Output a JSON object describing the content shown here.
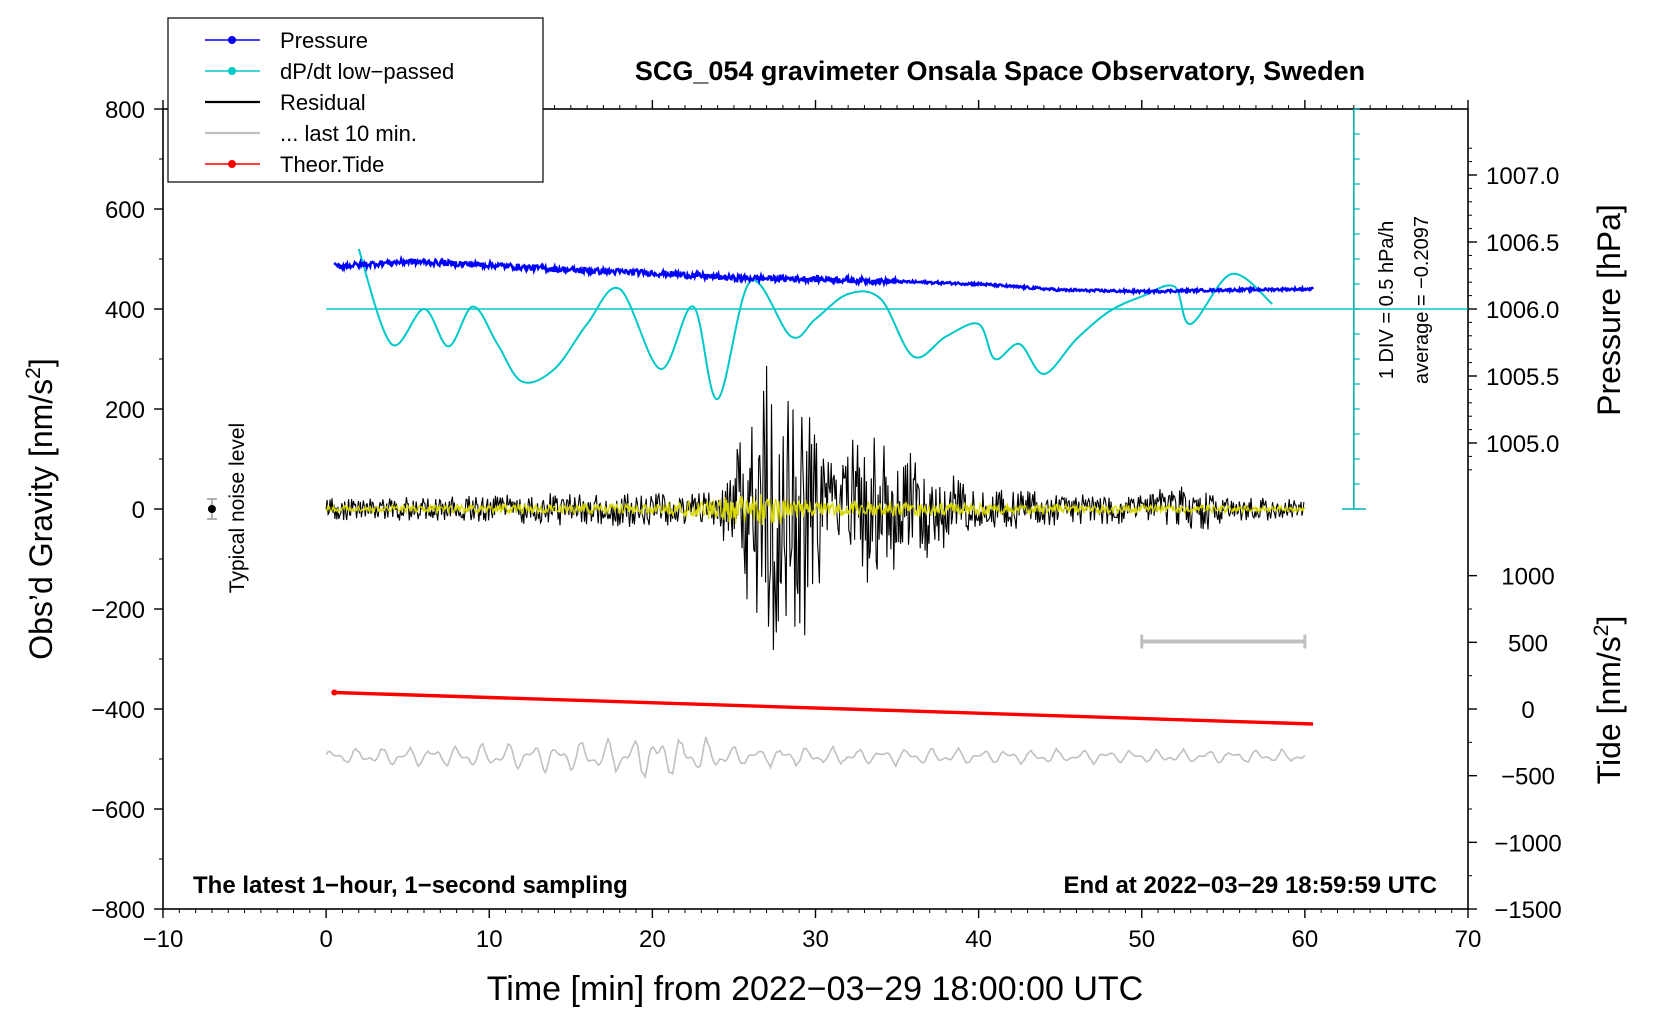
{
  "chart_data": {
    "type": "line",
    "title": "SCG_054 gravimeter Onsala Space Observatory, Sweden",
    "xlabel": "Time [min] from 2022−03−29 18:00:00 UTC",
    "ylabel_main": "Obs’d Gravity [nm/s",
    "ylabel_main_sup": "2",
    "ylabel_main_tail": "]",
    "ylabel_pressure": "Pressure [hPa]",
    "ylabel_tide": "Tide [nm/s",
    "ylabel_tide_sup": "2",
    "ylabel_tide_tail": "]",
    "xlim": [
      -10,
      70
    ],
    "ylim": [
      -800,
      800
    ],
    "x_ticks": [
      -10,
      0,
      10,
      20,
      30,
      40,
      50,
      60,
      70
    ],
    "x_tick_labels": [
      "−10",
      "0",
      "10",
      "20",
      "30",
      "40",
      "50",
      "60",
      "70"
    ],
    "y_ticks": [
      -800,
      -600,
      -400,
      -200,
      0,
      200,
      400,
      600,
      800
    ],
    "y_tick_labels": [
      "−800",
      "−600",
      "−400",
      "−200",
      "0",
      "200",
      "400",
      "600",
      "800"
    ],
    "pressure_axis": {
      "ticks": [
        1005.0,
        1005.5,
        1006.0,
        1006.5,
        1007.0
      ],
      "tick_labels": [
        "1005.0",
        "1005.5",
        "1006.0",
        "1006.5",
        "1007.0"
      ],
      "gravity_at_1006": 400,
      "gravity_per_hpa": 268
    },
    "tide_axis": {
      "ticks": [
        -1500,
        -1000,
        -500,
        0,
        500,
        1000
      ],
      "tick_labels": [
        "−1500",
        "−1000",
        "−500",
        "0",
        "500",
        "1000"
      ],
      "gravity_at_zero": -400,
      "gravity_per_unit": 0.2667
    },
    "legend": [
      {
        "label": "Pressure",
        "color": "#0000ff",
        "marker": "dot"
      },
      {
        "label": "dP/dt low−passed",
        "color": "#00c8c8",
        "marker": "dot"
      },
      {
        "label": "Residual",
        "color": "#000000",
        "marker": "none"
      },
      {
        "label": "... last 10 min.",
        "color": "#c0c0c0",
        "marker": "none"
      },
      {
        "label": "Theor.Tide",
        "color": "#ff0000",
        "marker": "dot"
      }
    ],
    "legend_position": "top-left",
    "series": [
      {
        "name": "Pressure",
        "color": "#0000ff",
        "x": [
          0.5,
          5,
          10,
          15,
          20,
          22,
          25,
          30,
          35,
          40,
          45,
          50,
          55,
          60.5
        ],
        "y": [
          485,
          495,
          488,
          478,
          472,
          468,
          462,
          460,
          455,
          450,
          438,
          435,
          438,
          440
        ]
      },
      {
        "name": "dP/dt low−passed",
        "color": "#00c8c8",
        "x": [
          2,
          4,
          6,
          7.5,
          9,
          10.5,
          12,
          14,
          16,
          18,
          20.5,
          22.5,
          24,
          26,
          28.5,
          30,
          32,
          34,
          36,
          38,
          40,
          41,
          42.5,
          44,
          46,
          48,
          50,
          52,
          53,
          55.5,
          58
        ],
        "y": [
          520,
          330,
          400,
          325,
          405,
          330,
          255,
          280,
          370,
          440,
          280,
          405,
          220,
          455,
          345,
          380,
          430,
          420,
          305,
          345,
          370,
          300,
          330,
          270,
          340,
          395,
          425,
          445,
          370,
          470,
          410
        ]
      },
      {
        "name": "Residual",
        "color": "#000000",
        "generator": "seismic",
        "x_range": [
          0,
          60
        ],
        "envelope": [
          [
            0,
            25
          ],
          [
            24,
            40
          ],
          [
            27,
            300
          ],
          [
            29,
            300
          ],
          [
            31,
            110
          ],
          [
            33,
            160
          ],
          [
            36,
            120
          ],
          [
            40,
            45
          ],
          [
            50,
            30
          ],
          [
            53,
            60
          ],
          [
            55,
            30
          ],
          [
            60,
            20
          ]
        ]
      },
      {
        "name": "Residual (filtered)",
        "color": "#d7d700",
        "generator": "seismic",
        "x_range": [
          0,
          60
        ],
        "envelope": [
          [
            0,
            8
          ],
          [
            20,
            12
          ],
          [
            27,
            40
          ],
          [
            30,
            18
          ],
          [
            60,
            6
          ]
        ]
      },
      {
        "name": "... last 10 min.",
        "color": "#c0c0c0",
        "generator": "wave",
        "x_range": [
          0,
          60
        ],
        "baseline": -495,
        "envelope": [
          [
            0,
            18
          ],
          [
            15,
            35
          ],
          [
            22,
            55
          ],
          [
            25,
            25
          ],
          [
            40,
            18
          ],
          [
            60,
            15
          ]
        ]
      },
      {
        "name": "Theor.Tide",
        "color": "#ff0000",
        "x": [
          0.5,
          60.5
        ],
        "y": [
          -367,
          -430
        ]
      }
    ],
    "noise_marker": {
      "x": -7,
      "y": 0,
      "err": 20,
      "label": "Typical noise level"
    },
    "scale_bar_10min": {
      "x": [
        50,
        60
      ],
      "y": -265
    },
    "pressure_scale": {
      "x": 63,
      "y_top": 800,
      "y_bottom": 0,
      "label_div": "1 DIV = 0.5 hPa/h",
      "label_avg": "average = −0.2097",
      "average_line_y": 400
    },
    "note_left": "The latest 1−hour, 1−second sampling",
    "note_right": "End at 2022−03−29 18:59:59 UTC"
  }
}
